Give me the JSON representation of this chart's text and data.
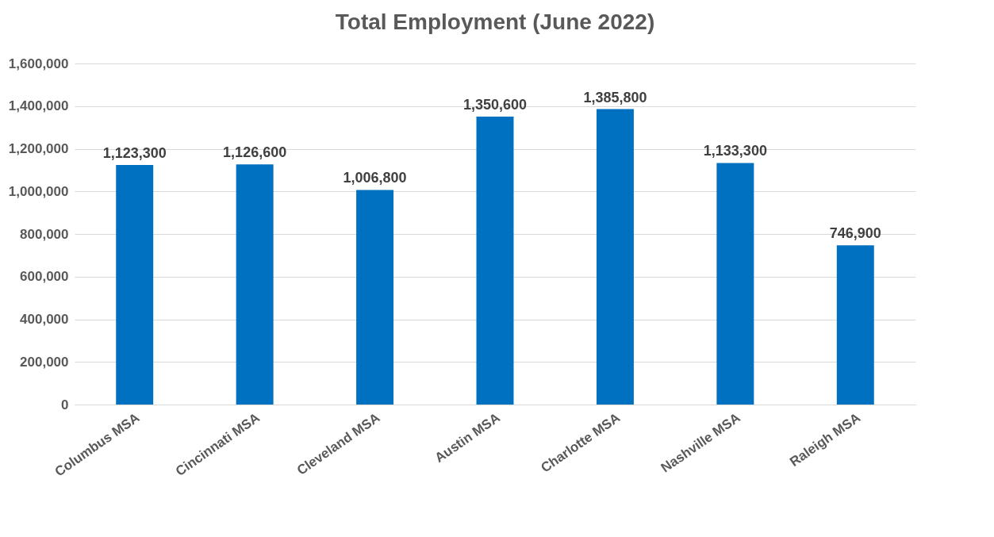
{
  "chart_data": {
    "type": "bar",
    "title": "Total Employment (June 2022)",
    "categories": [
      "Columbus MSA",
      "Cincinnati MSA",
      "Cleveland MSA",
      "Austin MSA",
      "Charlotte MSA",
      "Nashville MSA",
      "Raleigh MSA"
    ],
    "values": [
      1123300,
      1126600,
      1006800,
      1350600,
      1385800,
      1133300,
      746900
    ],
    "value_labels": [
      "1,123,300",
      "1,126,600",
      "1,006,800",
      "1,350,600",
      "1,385,800",
      "1,133,300",
      "746,900"
    ],
    "color": "#0070c0",
    "ylim": [
      0,
      1600000
    ],
    "yticks": [
      0,
      {
        "value": 200000,
        "label": "200,000"
      },
      {
        "value": 400000,
        "label": "400,000"
      },
      {
        "value": 600000,
        "label": "600,000"
      },
      {
        "value": 800000,
        "label": "800,000"
      },
      {
        "value": 1000000,
        "label": "1,000,000"
      },
      {
        "value": 1200000,
        "label": "1,200,000"
      },
      {
        "value": 1400000,
        "label": "1,400,000"
      },
      {
        "value": 1600000,
        "label": "1,600,000"
      }
    ],
    "grid": "y"
  }
}
